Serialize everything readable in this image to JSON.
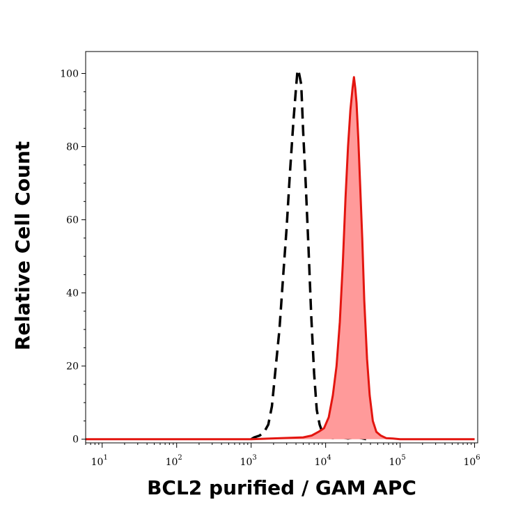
{
  "chart_data": {
    "type": "area",
    "title": "",
    "xlabel": "BCL2 purified / GAM APC",
    "ylabel": "Relative Cell Count",
    "x_scale": "log",
    "xlim": [
      6,
      1100000
    ],
    "ylim": [
      -1,
      106
    ],
    "x_ticks": [
      {
        "base": "10",
        "exp": "1",
        "value": 10
      },
      {
        "base": "10",
        "exp": "2",
        "value": 100
      },
      {
        "base": "10",
        "exp": "3",
        "value": 1000
      },
      {
        "base": "10",
        "exp": "4",
        "value": 10000
      },
      {
        "base": "10",
        "exp": "5",
        "value": 100000
      },
      {
        "base": "10",
        "exp": "6",
        "value": 1000000
      }
    ],
    "y_ticks": [
      "0",
      "20",
      "40",
      "60",
      "80",
      "100"
    ],
    "grid": false,
    "legend": null,
    "series": [
      {
        "style": "dashed-black",
        "color": "#000000",
        "fill": false,
        "x": [
          1000,
          1100,
          1300,
          1500,
          1700,
          1900,
          2100,
          2400,
          2700,
          3000,
          3300,
          3700,
          4000,
          4200,
          4400,
          4700,
          5000,
          5400,
          5900,
          6400,
          7000,
          7600,
          8300,
          9000,
          10000,
          11000,
          12500,
          14000,
          16000,
          20000,
          25000,
          30000,
          35000
        ],
        "y": [
          0,
          0.5,
          1,
          2,
          4,
          9,
          18,
          30,
          45,
          58,
          72,
          87,
          96,
          101,
          100,
          97,
          84,
          70,
          52,
          34,
          18,
          8,
          4,
          2,
          1,
          0.5,
          0.3,
          0.5,
          0.5,
          0.2,
          0.5,
          0.3,
          0
        ]
      },
      {
        "style": "solid-red-filled",
        "color": "#e3150f",
        "fill": "#ff9a9a",
        "x": [
          6,
          100,
          1000,
          5000,
          6500,
          8000,
          9500,
          11000,
          12500,
          14000,
          15500,
          17000,
          18500,
          20000,
          21500,
          23000,
          24000,
          25000,
          26000,
          27500,
          29000,
          31000,
          33000,
          36000,
          39000,
          43000,
          48000,
          55000,
          65000,
          80000,
          100000,
          1000000
        ],
        "y": [
          0,
          0,
          0,
          0.5,
          1,
          2,
          3,
          6,
          12,
          20,
          32,
          48,
          66,
          80,
          90,
          96,
          99,
          96,
          92,
          82,
          70,
          55,
          38,
          22,
          12,
          5,
          2,
          1,
          0.3,
          0.2,
          0,
          0
        ]
      }
    ]
  }
}
